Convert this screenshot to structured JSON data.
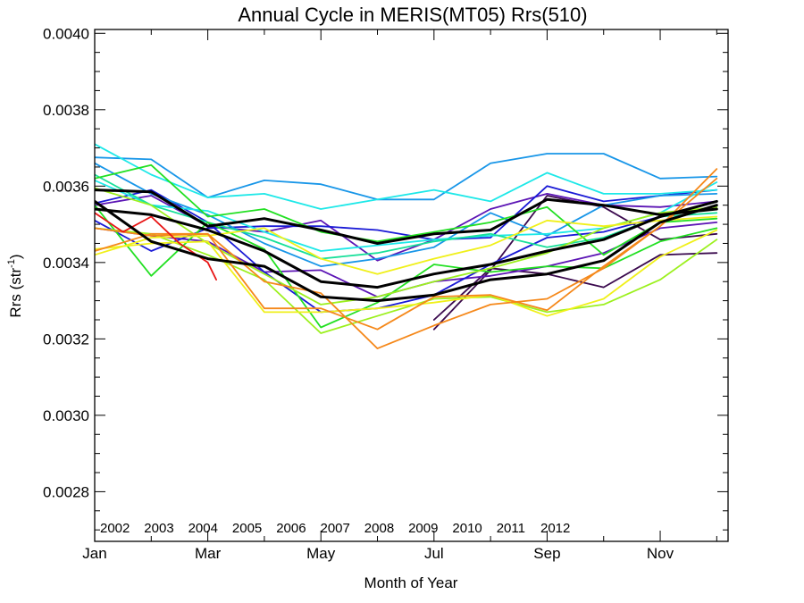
{
  "chart_data": {
    "type": "line",
    "title": "Annual Cycle in MERIS(MT05) Rrs(510)",
    "xlabel": "Month of Year",
    "ylabel": {
      "base": "Rrs (str",
      "sup": "-1",
      "close": ")"
    },
    "xlim": [
      1,
      12.2
    ],
    "ylim": [
      0.00267,
      0.00401
    ],
    "x_tick_labels": [
      {
        "month": 1,
        "label": "Jan"
      },
      {
        "month": 3,
        "label": "Mar"
      },
      {
        "month": 5,
        "label": "May"
      },
      {
        "month": 7,
        "label": "Jul"
      },
      {
        "month": 9,
        "label": "Sep"
      },
      {
        "month": 11,
        "label": "Nov"
      }
    ],
    "y_tick_labels": [
      {
        "value": 0.0028,
        "label": "0.0028"
      },
      {
        "value": 0.003,
        "label": "0.0030"
      },
      {
        "value": 0.0032,
        "label": "0.0032"
      },
      {
        "value": 0.0034,
        "label": "0.0034"
      },
      {
        "value": 0.0036,
        "label": "0.0036"
      },
      {
        "value": 0.0038,
        "label": "0.0038"
      },
      {
        "value": 0.004,
        "label": "0.0040"
      }
    ],
    "legend_placement": "bottom-left",
    "legend": [
      {
        "label": "2002",
        "color": "#3b0a4e"
      },
      {
        "label": "2003",
        "color": "#5c15b5"
      },
      {
        "label": "2004",
        "color": "#1a1ad6"
      },
      {
        "label": "2005",
        "color": "#1896e8"
      },
      {
        "label": "2006",
        "color": "#1de8e8"
      },
      {
        "label": "2007",
        "color": "#18e09a"
      },
      {
        "label": "2008",
        "color": "#22e022"
      },
      {
        "label": "2009",
        "color": "#9cf01e"
      },
      {
        "label": "2010",
        "color": "#f0f01a"
      },
      {
        "label": "2011",
        "color": "#f5881a"
      },
      {
        "label": "2012",
        "color": "#e81414"
      }
    ],
    "series": [
      {
        "color": "#3b0a4e",
        "width": 1.8,
        "x": [
          7,
          8,
          9,
          10,
          11,
          12
        ],
        "y": [
          0.003225,
          0.00338,
          0.003575,
          0.003545,
          0.00346,
          0.003475
        ]
      },
      {
        "color": "#3b0a4e",
        "width": 1.8,
        "x": [
          7,
          8,
          9,
          10,
          11,
          12
        ],
        "y": [
          0.00325,
          0.003385,
          0.00337,
          0.003335,
          0.00342,
          0.003425
        ]
      },
      {
        "color": "#5c15b5",
        "width": 1.8,
        "x": [
          1,
          2,
          3,
          4,
          5,
          6,
          7,
          8,
          9,
          10,
          11,
          12
        ],
        "y": [
          0.00355,
          0.003575,
          0.003495,
          0.00348,
          0.00351,
          0.003405,
          0.00346,
          0.00354,
          0.00358,
          0.00355,
          0.003545,
          0.00356
        ]
      },
      {
        "color": "#5c15b5",
        "width": 1.8,
        "x": [
          1,
          2,
          3,
          4,
          5,
          6,
          7,
          8,
          9,
          10,
          11,
          12
        ],
        "y": [
          0.00349,
          0.00347,
          0.003455,
          0.003375,
          0.00338,
          0.00331,
          0.00335,
          0.003365,
          0.00339,
          0.003425,
          0.00349,
          0.003505
        ]
      },
      {
        "color": "#1a1ad6",
        "width": 1.8,
        "x": [
          1,
          2,
          3,
          4,
          5,
          6,
          7,
          8,
          9,
          10,
          11,
          12
        ],
        "y": [
          0.003555,
          0.00359,
          0.003505,
          0.003375,
          0.00327,
          0.00328,
          0.003315,
          0.003395,
          0.003465,
          0.00348,
          0.00352,
          0.00356
        ]
      },
      {
        "color": "#1a1ad6",
        "width": 1.8,
        "x": [
          1,
          2,
          3,
          4,
          5,
          6,
          7,
          8,
          9,
          10,
          11,
          12
        ],
        "y": [
          0.00351,
          0.00343,
          0.00349,
          0.003495,
          0.003495,
          0.003485,
          0.00346,
          0.003465,
          0.0036,
          0.00356,
          0.003575,
          0.00359
        ]
      },
      {
        "color": "#1896e8",
        "width": 1.8,
        "x": [
          1,
          2,
          3,
          4,
          5,
          6,
          7,
          8,
          9,
          10,
          11,
          12
        ],
        "y": [
          0.003675,
          0.00367,
          0.00357,
          0.003615,
          0.003605,
          0.003565,
          0.003565,
          0.00366,
          0.003685,
          0.003685,
          0.00362,
          0.003625
        ]
      },
      {
        "color": "#1896e8",
        "width": 1.8,
        "x": [
          1,
          2,
          3,
          4,
          5,
          6,
          7,
          8,
          9,
          10,
          11,
          12
        ],
        "y": [
          0.00366,
          0.00358,
          0.003525,
          0.00345,
          0.00339,
          0.00341,
          0.00344,
          0.00353,
          0.00347,
          0.00355,
          0.003575,
          0.00358
        ]
      },
      {
        "color": "#1de8e8",
        "width": 1.8,
        "x": [
          1,
          2,
          3,
          4,
          5,
          6,
          7,
          8,
          9,
          10,
          11,
          12
        ],
        "y": [
          0.00371,
          0.00363,
          0.00357,
          0.00358,
          0.00354,
          0.003565,
          0.00359,
          0.00356,
          0.003635,
          0.00358,
          0.00358,
          0.00359
        ]
      },
      {
        "color": "#1de8e8",
        "width": 1.8,
        "x": [
          1,
          2,
          3,
          4,
          5,
          6,
          7,
          8,
          9,
          10,
          11,
          12
        ],
        "y": [
          0.003615,
          0.00355,
          0.003535,
          0.00348,
          0.00343,
          0.003445,
          0.00346,
          0.00347,
          0.003475,
          0.00349,
          0.00353,
          0.00361
        ]
      },
      {
        "color": "#18e09a",
        "width": 1.8,
        "x": [
          1,
          2,
          3,
          4,
          5,
          6,
          7,
          8,
          9,
          10,
          11,
          12
        ],
        "y": [
          0.00363,
          0.00355,
          0.003505,
          0.003465,
          0.00341,
          0.003425,
          0.003455,
          0.003475,
          0.00344,
          0.003465,
          0.00352,
          0.00353
        ]
      },
      {
        "color": "#22e022",
        "width": 1.8,
        "x": [
          1,
          2,
          3,
          4,
          5,
          6,
          7,
          8,
          9,
          10,
          11,
          12
        ],
        "y": [
          0.00362,
          0.003655,
          0.00352,
          0.00354,
          0.00348,
          0.003455,
          0.00348,
          0.003505,
          0.003545,
          0.00342,
          0.003505,
          0.003515
        ]
      },
      {
        "color": "#22e022",
        "width": 1.8,
        "x": [
          1,
          2,
          3,
          4,
          5,
          6,
          7,
          8,
          9,
          10,
          11,
          12
        ],
        "y": [
          0.00355,
          0.003365,
          0.003505,
          0.003435,
          0.00323,
          0.003295,
          0.003395,
          0.003375,
          0.00339,
          0.003385,
          0.003455,
          0.00349
        ]
      },
      {
        "color": "#9cf01e",
        "width": 1.8,
        "x": [
          1,
          2,
          3,
          4,
          5,
          6,
          7,
          8,
          9,
          10,
          11,
          12
        ],
        "y": [
          0.003595,
          0.00355,
          0.00345,
          0.00337,
          0.00329,
          0.00331,
          0.00335,
          0.003385,
          0.003425,
          0.00349,
          0.00353,
          0.003545
        ]
      },
      {
        "color": "#9cf01e",
        "width": 1.8,
        "x": [
          1,
          2,
          3,
          4,
          5,
          6,
          7,
          8,
          9,
          10,
          11,
          12
        ],
        "y": [
          0.00349,
          0.003475,
          0.00342,
          0.003355,
          0.003215,
          0.00326,
          0.003305,
          0.00331,
          0.00327,
          0.00329,
          0.003355,
          0.00346
        ]
      },
      {
        "color": "#f0f01a",
        "width": 1.8,
        "x": [
          1,
          2,
          3,
          4,
          5,
          6,
          7,
          8,
          9,
          10,
          11,
          12
        ],
        "y": [
          0.00342,
          0.003465,
          0.00347,
          0.00349,
          0.00341,
          0.00337,
          0.00341,
          0.003445,
          0.00351,
          0.003495,
          0.00351,
          0.00352
        ]
      },
      {
        "color": "#f0f01a",
        "width": 1.8,
        "x": [
          1,
          2,
          3,
          4,
          5,
          6,
          7,
          8,
          9,
          10,
          11,
          12
        ],
        "y": [
          0.003435,
          0.00345,
          0.003455,
          0.00327,
          0.00327,
          0.00328,
          0.003295,
          0.003315,
          0.00326,
          0.003305,
          0.003415,
          0.003485
        ]
      },
      {
        "color": "#f5881a",
        "width": 1.8,
        "x": [
          1,
          2,
          3,
          4,
          5,
          6,
          7,
          8,
          9,
          10,
          11,
          12
        ],
        "y": [
          0.00349,
          0.00347,
          0.003475,
          0.00335,
          0.00332,
          0.003175,
          0.003235,
          0.00329,
          0.003305,
          0.003385,
          0.003495,
          0.003645
        ]
      },
      {
        "color": "#f5881a",
        "width": 1.8,
        "x": [
          1,
          2,
          3,
          4,
          5,
          6,
          7,
          8,
          9,
          10,
          11,
          12
        ],
        "y": [
          0.00343,
          0.003475,
          0.003475,
          0.00328,
          0.00328,
          0.003225,
          0.00331,
          0.003315,
          0.003275,
          0.00339,
          0.003495,
          0.00362
        ]
      },
      {
        "color": "#e81414",
        "width": 1.8,
        "x": [
          1,
          1.5,
          2,
          2.5,
          3,
          3.15
        ],
        "y": [
          0.00353,
          0.00348,
          0.00352,
          0.00345,
          0.0034,
          0.003355
        ]
      },
      {
        "color": "#000000",
        "width": 3,
        "x": [
          1,
          2,
          3,
          4,
          5,
          6,
          7,
          8,
          9,
          10,
          11,
          12
        ],
        "y": [
          0.00359,
          0.003585,
          0.003495,
          0.003515,
          0.003485,
          0.00345,
          0.003475,
          0.003485,
          0.003565,
          0.00355,
          0.003525,
          0.00354
        ]
      },
      {
        "color": "#000000",
        "width": 3,
        "x": [
          1,
          2,
          3,
          4,
          5,
          6,
          7,
          8,
          9,
          10,
          11,
          12
        ],
        "y": [
          0.00354,
          0.003525,
          0.003485,
          0.00343,
          0.00335,
          0.003335,
          0.00337,
          0.003395,
          0.00343,
          0.00346,
          0.00352,
          0.00356
        ]
      },
      {
        "color": "#000000",
        "width": 3,
        "x": [
          1,
          2,
          3,
          4,
          5,
          6,
          7,
          8,
          9,
          10,
          11,
          12
        ],
        "y": [
          0.00356,
          0.003455,
          0.00341,
          0.00339,
          0.00331,
          0.0033,
          0.003315,
          0.003355,
          0.00337,
          0.003405,
          0.003505,
          0.00355
        ]
      }
    ]
  }
}
